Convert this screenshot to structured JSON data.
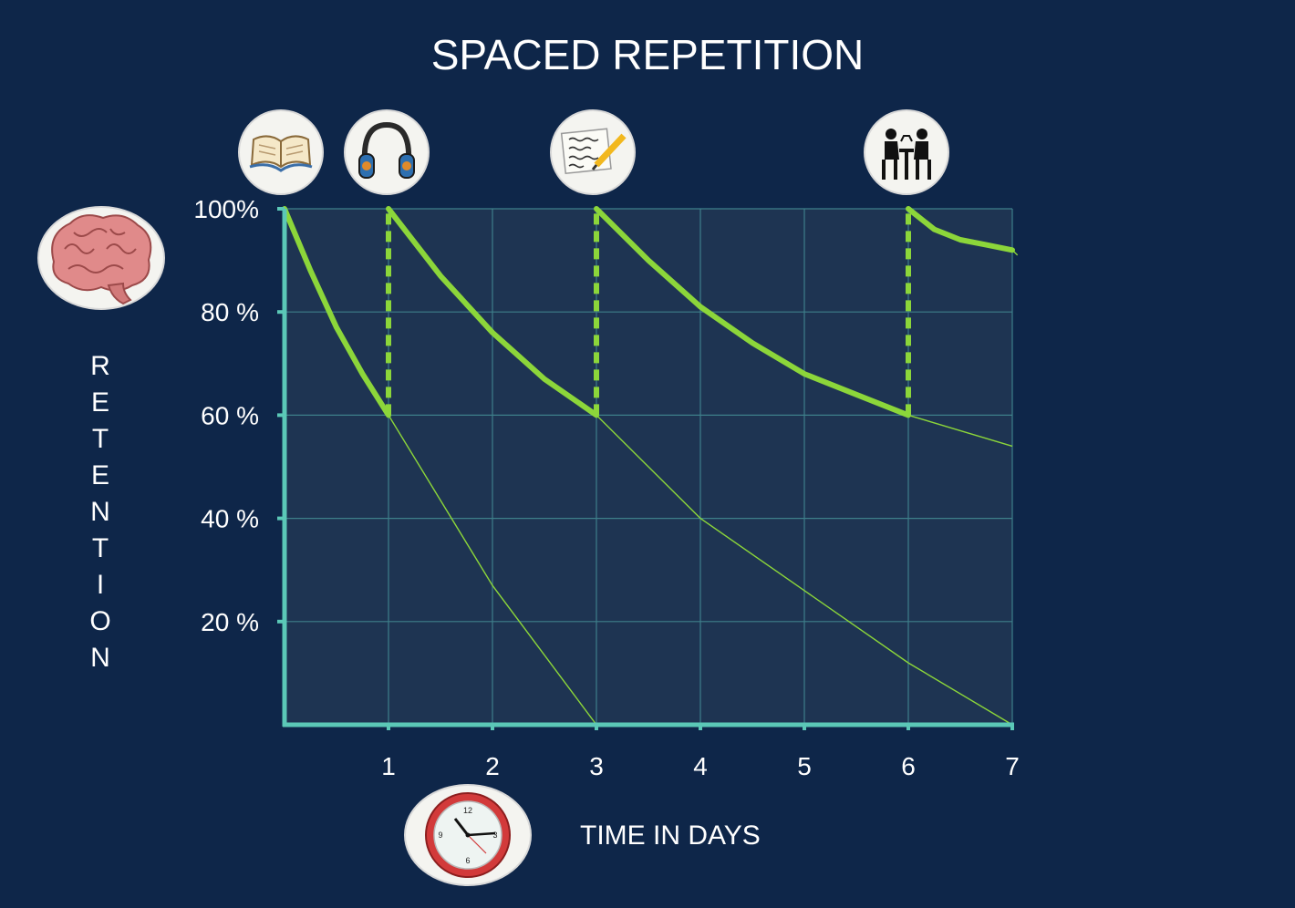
{
  "title": "SPACED REPETITION",
  "y_axis_letters": [
    "R",
    "E",
    "T",
    "E",
    "N",
    "T",
    "I",
    "O",
    "N"
  ],
  "x_axis_label": "TIME IN DAYS",
  "icons": {
    "book": "open-book-icon",
    "headphones": "headphones-icon",
    "notes": "notes-pencil-icon",
    "discussion": "people-discussion-icon",
    "brain": "brain-icon",
    "clock": "clock-icon"
  },
  "colors": {
    "background": "#0e2649",
    "plot_area": "#1e3452",
    "axis": "#5bc8b7",
    "curve": "#8cd63a"
  },
  "chart_data": {
    "type": "line",
    "title": "SPACED REPETITION",
    "xlabel": "TIME IN DAYS",
    "ylabel": "RETENTION",
    "xlim": [
      0,
      7
    ],
    "ylim": [
      0,
      100
    ],
    "grid": true,
    "x_ticks": [
      {
        "value": 1,
        "label": "1"
      },
      {
        "value": 2,
        "label": "2"
      },
      {
        "value": 3,
        "label": "3"
      },
      {
        "value": 4,
        "label": "4"
      },
      {
        "value": 5,
        "label": "5"
      },
      {
        "value": 6,
        "label": "6"
      },
      {
        "value": 7,
        "label": "7"
      }
    ],
    "y_ticks": [
      {
        "value": 100,
        "label": "100%"
      },
      {
        "value": 80,
        "label": "80 %"
      },
      {
        "value": 60,
        "label": "60 %"
      },
      {
        "value": 40,
        "label": "40 %"
      },
      {
        "value": 20,
        "label": "20 %"
      }
    ],
    "review_days": [
      1,
      3,
      6
    ],
    "series": [
      {
        "style": "thick",
        "points": [
          [
            0,
            100
          ],
          [
            0.25,
            88
          ],
          [
            0.5,
            77
          ],
          [
            0.75,
            68
          ],
          [
            1,
            60
          ]
        ]
      },
      {
        "style": "thick",
        "points": [
          [
            1,
            100
          ],
          [
            1.5,
            87
          ],
          [
            2,
            76
          ],
          [
            2.5,
            67
          ],
          [
            3,
            60
          ]
        ]
      },
      {
        "style": "thick",
        "points": [
          [
            3,
            100
          ],
          [
            3.5,
            90
          ],
          [
            4,
            81
          ],
          [
            4.5,
            74
          ],
          [
            5,
            68
          ],
          [
            5.5,
            64
          ],
          [
            6,
            60
          ]
        ]
      },
      {
        "style": "thick",
        "points": [
          [
            6,
            100
          ],
          [
            6.25,
            96
          ],
          [
            6.5,
            94
          ],
          [
            6.75,
            93
          ],
          [
            7,
            92
          ]
        ]
      },
      {
        "style": "thin",
        "points": [
          [
            1,
            60
          ],
          [
            2,
            27
          ],
          [
            3,
            0
          ]
        ]
      },
      {
        "style": "thin",
        "points": [
          [
            3,
            60
          ],
          [
            4,
            40
          ],
          [
            5,
            26
          ],
          [
            6,
            12
          ],
          [
            7,
            0
          ]
        ]
      },
      {
        "style": "thin",
        "points": [
          [
            6,
            60
          ],
          [
            6.5,
            57
          ],
          [
            7,
            54
          ]
        ]
      },
      {
        "style": "thin",
        "points": [
          [
            7,
            92
          ],
          [
            7.05,
            91
          ]
        ]
      }
    ]
  }
}
